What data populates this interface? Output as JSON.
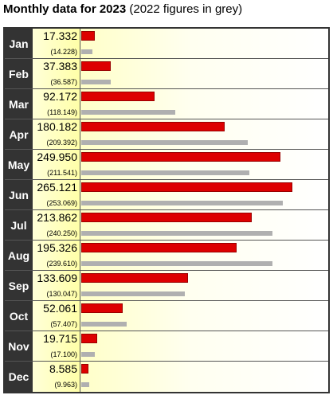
{
  "header": {
    "title_bold": "Monthly data for 2023",
    "title_rest": "(2022 figures in grey)"
  },
  "colors": {
    "current": "#dd0000",
    "previous": "#b0b0b0",
    "month_bg": "#333333"
  },
  "chart_data": {
    "type": "bar",
    "orientation": "horizontal",
    "categories": [
      "Jan",
      "Feb",
      "Mar",
      "Apr",
      "May",
      "Jun",
      "Jul",
      "Aug",
      "Sep",
      "Oct",
      "Nov",
      "Dec"
    ],
    "series": [
      {
        "name": "2023",
        "values": [
          17.332,
          37.383,
          92.172,
          180.182,
          249.95,
          265.121,
          213.862,
          195.326,
          133.609,
          52.061,
          19.715,
          8.585
        ]
      },
      {
        "name": "2022",
        "values": [
          14.228,
          36.587,
          118.149,
          209.392,
          211.541,
          253.069,
          240.25,
          239.61,
          130.047,
          57.407,
          17.1,
          9.963
        ]
      }
    ],
    "labels_current": [
      "17.332",
      "37.383",
      "92.172",
      "180.182",
      "249.950",
      "265.121",
      "213.862",
      "195.326",
      "133.609",
      "52.061",
      "19.715",
      "8.585"
    ],
    "labels_previous": [
      "(14.228)",
      "(36.587)",
      "(118.149)",
      "(209.392)",
      "(211.541)",
      "(253.069)",
      "(240.250)",
      "(239.610)",
      "(130.047)",
      "(57.407)",
      "(17.100)",
      "(9.963)"
    ],
    "xlim": [
      0,
      265.121
    ]
  }
}
